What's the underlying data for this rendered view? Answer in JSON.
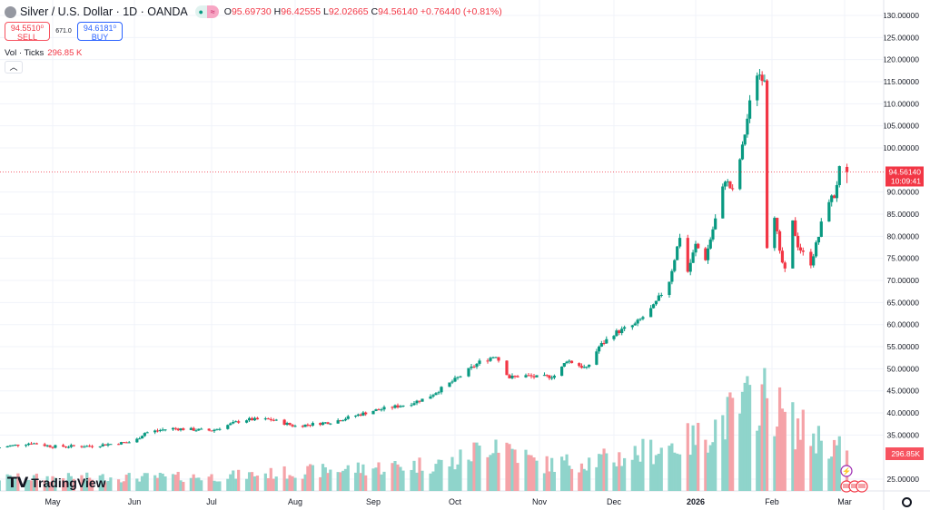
{
  "header": {
    "symbol": "Silver / U.S. Dollar · 1D · OANDA",
    "open_label": "O",
    "open": "95.69730",
    "high_label": "H",
    "high": "96.42555",
    "low_label": "L",
    "low": "92.02665",
    "close_label": "C",
    "close": "94.56140",
    "change": "+0.76440 (+0.81%)"
  },
  "trade": {
    "sell_price": "94.5510⁰",
    "sell_label": "SELL",
    "spread": "671.0",
    "buy_price": "94.6181⁰",
    "buy_label": "BUY"
  },
  "volume_legend": {
    "label": "Vol · Ticks",
    "value": "296.85 K"
  },
  "collapse_icon": "chevron-up-icon",
  "price_tag": {
    "price": "94.56140",
    "countdown": "10:09:41",
    "color": "#f23645"
  },
  "volume_tag": "296.85K",
  "brand": "TradingView",
  "colors": {
    "up": "#089981",
    "down": "#f23645",
    "vol_up": "#8fd4cb",
    "vol_down": "#f5a3a8"
  },
  "chart_data": {
    "type": "candlestick",
    "y_ticks": [
      "130.00000",
      "125.00000",
      "120.00000",
      "115.00000",
      "110.00000",
      "105.00000",
      "100.00000",
      "90.00000",
      "85.00000",
      "80.00000",
      "75.00000",
      "70.00000",
      "65.00000",
      "60.00000",
      "55.00000",
      "50.00000",
      "45.00000",
      "40.00000",
      "35.00000",
      "25.00000"
    ],
    "x_ticks": [
      "May",
      "Jun",
      "Jul",
      "Aug",
      "Sep",
      "Oct",
      "Nov",
      "Dec",
      "2026",
      "Feb",
      "Mar"
    ],
    "ylim": [
      22,
      132
    ],
    "close_series": [
      [
        "2025-04-11",
        32.2
      ],
      [
        "2025-04-23",
        33.2
      ],
      [
        "2025-05-01",
        32.4
      ],
      [
        "2025-05-15",
        32.5
      ],
      [
        "2025-06-01",
        33.5
      ],
      [
        "2025-06-05",
        35.5
      ],
      [
        "2025-06-15",
        36.5
      ],
      [
        "2025-07-01",
        36.0
      ],
      [
        "2025-07-13",
        38.5
      ],
      [
        "2025-07-23",
        38.5
      ],
      [
        "2025-08-01",
        37.0
      ],
      [
        "2025-08-16",
        38.0
      ],
      [
        "2025-09-01",
        40.5
      ],
      [
        "2025-09-14",
        42
      ],
      [
        "2025-09-21",
        43.5
      ],
      [
        "2025-10-01",
        47.5
      ],
      [
        "2025-10-10",
        51.5
      ],
      [
        "2025-10-16",
        53
      ],
      [
        "2025-10-21",
        48
      ],
      [
        "2025-10-26",
        48.5
      ],
      [
        "2025-11-01",
        48
      ],
      [
        "2025-11-08",
        48.5
      ],
      [
        "2025-11-12",
        52
      ],
      [
        "2025-11-20",
        50
      ],
      [
        "2025-11-25",
        55
      ],
      [
        "2025-12-01",
        58
      ],
      [
        "2025-12-09",
        60
      ],
      [
        "2025-12-16",
        64
      ],
      [
        "2025-12-22",
        70
      ],
      [
        "2025-12-26",
        80
      ],
      [
        "2025-12-29",
        72
      ],
      [
        "2026-01-01",
        78
      ],
      [
        "2026-01-05",
        75
      ],
      [
        "2026-01-10",
        86
      ],
      [
        "2026-01-13",
        93
      ],
      [
        "2026-01-16",
        90
      ],
      [
        "2026-01-20",
        100
      ],
      [
        "2026-01-23",
        110
      ],
      [
        "2026-01-26",
        117
      ],
      [
        "2026-01-29",
        116
      ],
      [
        "2026-01-30",
        78
      ],
      [
        "2026-02-02",
        85
      ],
      [
        "2026-02-04",
        76
      ],
      [
        "2026-02-06",
        72
      ],
      [
        "2026-02-09",
        83
      ],
      [
        "2026-02-11",
        78
      ],
      [
        "2026-02-14",
        75
      ],
      [
        "2026-02-16",
        74
      ],
      [
        "2026-02-19",
        80
      ],
      [
        "2026-02-22",
        88
      ],
      [
        "2026-02-25",
        89
      ],
      [
        "2026-02-27",
        95
      ],
      [
        "2026-03-02",
        94.56
      ]
    ],
    "volume_series_k": [
      [
        "2025-04-11",
        100
      ],
      [
        "2025-07-01",
        110
      ],
      [
        "2025-09-01",
        180
      ],
      [
        "2025-10-01",
        220
      ],
      [
        "2025-10-16",
        400
      ],
      [
        "2025-11-01",
        200
      ],
      [
        "2025-12-01",
        250
      ],
      [
        "2026-01-01",
        400
      ],
      [
        "2026-01-28",
        750
      ],
      [
        "2026-02-10",
        500
      ],
      [
        "2026-03-02",
        297
      ]
    ]
  }
}
